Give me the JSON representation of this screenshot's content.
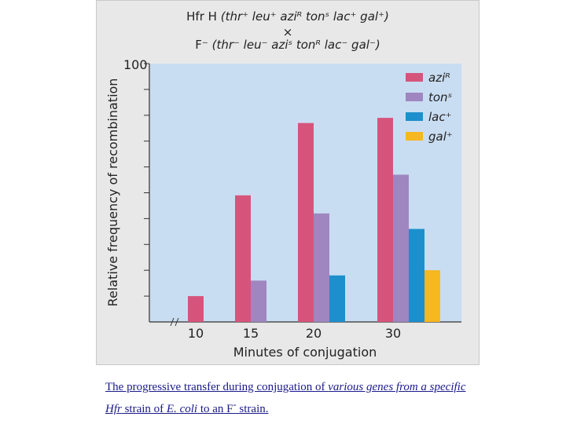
{
  "cross": {
    "parent1_strain": "Hfr H",
    "parent1_genotype": "(thr⁺ leu⁺ aziᴿ tonˢ lac⁺ gal⁺)",
    "cross_symbol": "×",
    "parent2_strain": "F⁻",
    "parent2_genotype": "(thr⁻ leu⁻ aziˢ tonᴿ lac⁻ gal⁻)"
  },
  "caption": {
    "part1": "The progressive transfer during conjugation of ",
    "part2": "various genes from a specific Hfr",
    "part3": " strain of ",
    "part4": "E. coli",
    "part5": " to an F",
    "part5_sup": "-",
    "part6": " strain."
  },
  "colors": {
    "azi": "#d6547c",
    "ton": "#9f86c0",
    "lac": "#1d8fcc",
    "gal": "#f6b71f",
    "plot_bg": "#c9ddf2",
    "panel_bg": "#e8e8e8"
  },
  "chart_data": {
    "type": "bar",
    "title": "",
    "xlabel": "Minutes of conjugation",
    "ylabel": "Relative frequency of recombination",
    "categories": [
      "10",
      "15",
      "20",
      "30"
    ],
    "ylim": [
      0,
      100
    ],
    "y_tick_labels": [
      "100"
    ],
    "y_minor_ticks": 10,
    "grid": false,
    "legend_position": "top-right",
    "series": [
      {
        "name": "aziᴿ",
        "color_key": "azi",
        "values": [
          10,
          49,
          77,
          79
        ]
      },
      {
        "name": "tonˢ",
        "color_key": "ton",
        "values": [
          null,
          16,
          42,
          57
        ]
      },
      {
        "name": "lac⁺",
        "color_key": "lac",
        "values": [
          null,
          null,
          18,
          36
        ]
      },
      {
        "name": "gal⁺",
        "color_key": "gal",
        "values": [
          null,
          null,
          null,
          20
        ]
      }
    ]
  }
}
